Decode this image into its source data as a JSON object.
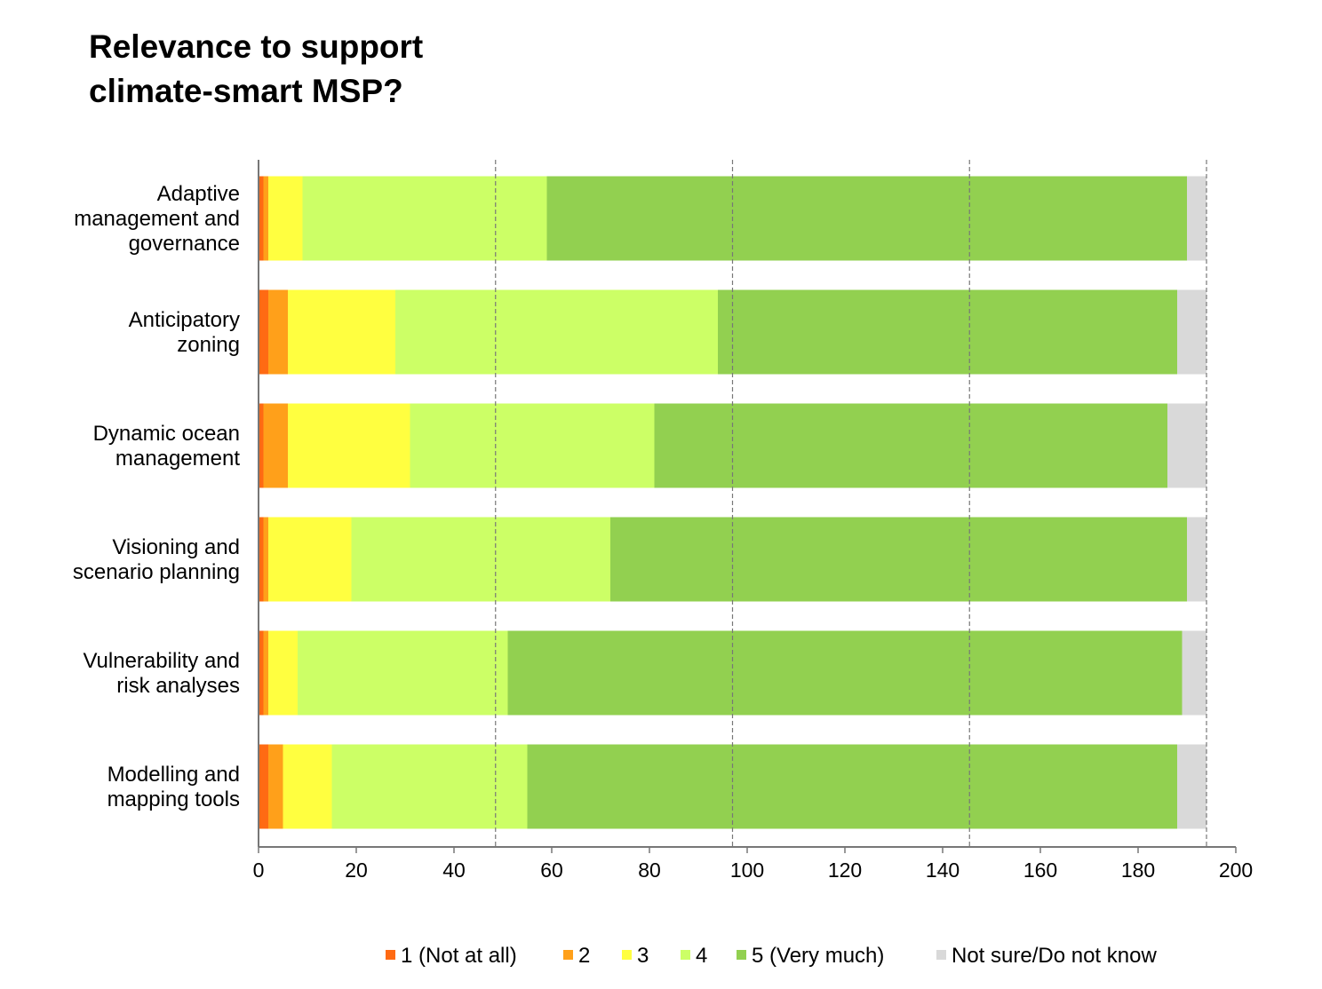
{
  "chart_data": {
    "type": "bar",
    "orientation": "horizontal",
    "stacked": true,
    "title": "Relevance to support\nclimate-smart MSP?",
    "xlabel": "",
    "ylabel": "",
    "xlim": [
      0,
      200
    ],
    "xticks": [
      0,
      20,
      40,
      60,
      80,
      100,
      120,
      140,
      160,
      180,
      200
    ],
    "grid": false,
    "reference_lines": [
      48.5,
      97,
      145.5,
      194
    ],
    "legend_position": "bottom",
    "categories": [
      "Adaptive\nmanagement and\ngovernance",
      "Anticipatory\nzoning",
      "Dynamic ocean\nmanagement",
      "Visioning and\nscenario planning",
      "Vulnerability and\nrisk analyses",
      "Modelling and\nmapping tools"
    ],
    "series": [
      {
        "name": "1 (Not at all)",
        "color": "#ff6a13",
        "values": [
          1,
          2,
          1,
          1,
          1,
          2
        ]
      },
      {
        "name": "2",
        "color": "#ffa01a",
        "values": [
          1,
          4,
          5,
          1,
          1,
          3
        ]
      },
      {
        "name": "3",
        "color": "#ffff40",
        "values": [
          7,
          22,
          25,
          17,
          6,
          10
        ]
      },
      {
        "name": "4",
        "color": "#ccff66",
        "values": [
          50,
          66,
          50,
          53,
          43,
          40
        ]
      },
      {
        "name": "5 (Very much)",
        "color": "#92d050",
        "values": [
          131,
          94,
          105,
          118,
          138,
          133
        ]
      },
      {
        "name": "Not sure/Do not know",
        "color": "#d9d9d9",
        "values": [
          4,
          6,
          8,
          4,
          5,
          6
        ]
      }
    ]
  }
}
